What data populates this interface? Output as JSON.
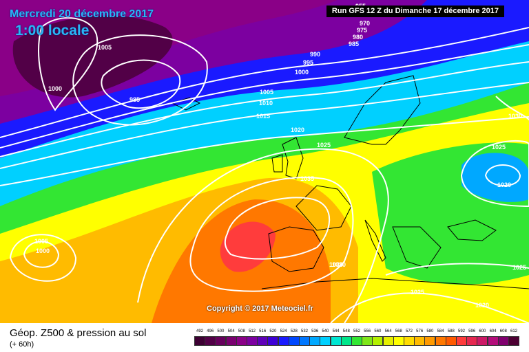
{
  "header": {
    "date": "Mercredi 20 décembre 2017",
    "local_time": "1:00 locale",
    "run": "Run GFS 12 Z du Dimanche 17 décembre 2017"
  },
  "copyright": "Copyright © 2017 Meteociel.fr",
  "legend": {
    "title": "Géop. Z500 & pression au sol",
    "subtitle": "(+ 60h)",
    "values": [
      "492",
      "496",
      "500",
      "504",
      "508",
      "512",
      "516",
      "520",
      "524",
      "528",
      "532",
      "536",
      "540",
      "544",
      "548",
      "552",
      "556",
      "560",
      "564",
      "568",
      "572",
      "576",
      "580",
      "584",
      "588",
      "592",
      "596",
      "600",
      "604",
      "608",
      "612"
    ],
    "colors": [
      "#3d0033",
      "#520047",
      "#66005c",
      "#7a0070",
      "#8a0087",
      "#7c00a0",
      "#5f00b8",
      "#3d00d6",
      "#1a1aff",
      "#0047ff",
      "#0077ff",
      "#00a8ff",
      "#00d0ff",
      "#00e6d2",
      "#00e68a",
      "#33e633",
      "#7fe619",
      "#b3f000",
      "#e6f000",
      "#ffff00",
      "#ffdc00",
      "#ffbb00",
      "#ff9a00",
      "#ff7800",
      "#ff5a00",
      "#ff3c3c",
      "#e62850",
      "#cc1a66",
      "#b30d7a",
      "#80006e",
      "#4d0033"
    ]
  },
  "isobar_labels": [
    "955",
    "970",
    "975",
    "980",
    "985",
    "990",
    "995",
    "1000",
    "1005",
    "1000",
    "985",
    "1005",
    "1010",
    "1015",
    "1020",
    "1025",
    "1035",
    "1030",
    "1030",
    "1025",
    "1020",
    "1005",
    "1000",
    "1030",
    "1025",
    "1025",
    "1020"
  ],
  "colors": {
    "background": "#ffffff",
    "isobar_line": "#ffffff",
    "coastline": "#000000",
    "title_text": "#29b6f6"
  }
}
